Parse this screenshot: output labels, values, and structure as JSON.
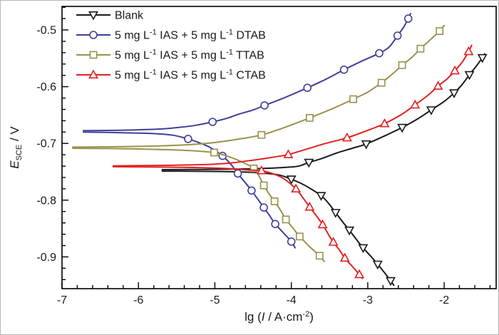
{
  "figure": {
    "background": "#ffffff",
    "frame_color": "#000000",
    "text_color": "#1a1a1a"
  },
  "axes": {
    "x": {
      "label_plain": "lg (I / A·cm-2)",
      "label_parts": [
        {
          "text": "lg ("
        },
        {
          "text": "I",
          "italic": true
        },
        {
          "text": " / A·cm"
        },
        {
          "text": "-2",
          "sup": true
        },
        {
          "text": ")"
        }
      ],
      "major_ticks": [
        -7,
        -6,
        -5,
        -4,
        -3,
        -2
      ],
      "minor_step": 0.2,
      "range": [
        -7,
        -1.32
      ]
    },
    "y": {
      "label_plain": "E_SCE / V",
      "label_parts": [
        {
          "text": "E",
          "italic": true
        },
        {
          "text": "SCE",
          "sub": true
        },
        {
          "text": " / V"
        }
      ],
      "major_ticks": [
        -0.9,
        -0.8,
        -0.7,
        -0.6,
        -0.5
      ],
      "minor_step": 0.02,
      "range": [
        -0.956,
        -0.4585
      ]
    }
  },
  "legend": {
    "position": "top-left",
    "items": [
      {
        "series_key": "blank",
        "label_parts": [
          {
            "text": "Blank"
          }
        ]
      },
      {
        "series_key": "dtab",
        "label_parts": [
          {
            "text": "5 mg L"
          },
          {
            "text": "-1",
            "sup": true
          },
          {
            "text": " IAS + 5 mg L"
          },
          {
            "text": "-1",
            "sup": true
          },
          {
            "text": " DTAB"
          }
        ]
      },
      {
        "series_key": "ttab",
        "label_parts": [
          {
            "text": "5 mg L"
          },
          {
            "text": "-1",
            "sup": true
          },
          {
            "text": " IAS + 5 mg L"
          },
          {
            "text": "-1",
            "sup": true
          },
          {
            "text": " TTAB"
          }
        ]
      },
      {
        "series_key": "ctab",
        "label_parts": [
          {
            "text": "5 mg L"
          },
          {
            "text": "-1",
            "sup": true
          },
          {
            "text": " IAS + 5 mg L"
          },
          {
            "text": "-1",
            "sup": true
          },
          {
            "text": " CTAB"
          }
        ]
      }
    ]
  },
  "chart_data": {
    "type": "line",
    "title": "",
    "xlabel": "lg (I / A·cm-2)",
    "ylabel": "E_SCE / V",
    "xlim": [
      -7,
      -1.32
    ],
    "ylim": [
      -0.956,
      -0.4585
    ],
    "grid": false,
    "legend_position": "top-left",
    "series": [
      {
        "key": "blank",
        "name": "Blank",
        "color": "#1a1a1a",
        "marker": "triangle-down",
        "ecorr_V": -0.747,
        "anodic": [
          [
            -5.69,
            -0.7462
          ],
          [
            -5.3,
            -0.746
          ],
          [
            -4.9,
            -0.7455
          ],
          [
            -4.55,
            -0.7448
          ],
          [
            -4.25,
            -0.7435
          ],
          [
            -4.0,
            -0.7415
          ],
          [
            -3.89,
            -0.7395
          ],
          [
            -3.77,
            -0.7335
          ],
          [
            -3.6,
            -0.7265
          ],
          [
            -3.4,
            -0.7165
          ],
          [
            -3.2,
            -0.7085
          ],
          [
            -3.02,
            -0.701
          ],
          [
            -2.8,
            -0.688
          ],
          [
            -2.55,
            -0.672
          ],
          [
            -2.35,
            -0.657
          ],
          [
            -2.17,
            -0.641
          ],
          [
            -2.0,
            -0.626
          ],
          [
            -1.87,
            -0.611
          ],
          [
            -1.77,
            -0.597
          ],
          [
            -1.67,
            -0.579
          ],
          [
            -1.57,
            -0.562
          ],
          [
            -1.5,
            -0.549
          ],
          [
            -1.47,
            -0.542
          ]
        ],
        "anodic_markers": [
          [
            -3.77,
            -0.7335
          ],
          [
            -3.02,
            -0.701
          ],
          [
            -2.55,
            -0.672
          ],
          [
            -2.17,
            -0.641
          ],
          [
            -1.87,
            -0.611
          ],
          [
            -1.67,
            -0.579
          ],
          [
            -1.5,
            -0.549
          ]
        ],
        "cathodic": [
          [
            -5.69,
            -0.7488
          ],
          [
            -5.3,
            -0.749
          ],
          [
            -4.9,
            -0.7495
          ],
          [
            -4.6,
            -0.7505
          ],
          [
            -4.35,
            -0.7525
          ],
          [
            -4.15,
            -0.756
          ],
          [
            -4.0,
            -0.763
          ],
          [
            -3.88,
            -0.77
          ],
          [
            -3.77,
            -0.778
          ],
          [
            -3.61,
            -0.792
          ],
          [
            -3.51,
            -0.806
          ],
          [
            -3.42,
            -0.822
          ],
          [
            -3.33,
            -0.838
          ],
          [
            -3.24,
            -0.853
          ],
          [
            -3.15,
            -0.869
          ],
          [
            -3.06,
            -0.884
          ],
          [
            -2.96,
            -0.899
          ],
          [
            -2.87,
            -0.913
          ],
          [
            -2.78,
            -0.928
          ],
          [
            -2.7,
            -0.942
          ],
          [
            -2.66,
            -0.95
          ]
        ],
        "cathodic_markers": [
          [
            -4.0,
            -0.763
          ],
          [
            -3.61,
            -0.792
          ],
          [
            -3.42,
            -0.822
          ],
          [
            -3.24,
            -0.853
          ],
          [
            -3.06,
            -0.884
          ],
          [
            -2.87,
            -0.913
          ],
          [
            -2.7,
            -0.942
          ]
        ]
      },
      {
        "key": "dtab",
        "name": "5 mg L-1 IAS + 5 mg L-1 DTAB",
        "color": "#3f3f99",
        "marker": "circle",
        "ecorr_V": -0.679,
        "anodic": [
          [
            -6.72,
            -0.6775
          ],
          [
            -6.35,
            -0.677
          ],
          [
            -6.0,
            -0.676
          ],
          [
            -5.7,
            -0.6745
          ],
          [
            -5.45,
            -0.6715
          ],
          [
            -5.25,
            -0.668
          ],
          [
            -5.03,
            -0.662
          ],
          [
            -4.85,
            -0.656
          ],
          [
            -4.7,
            -0.649
          ],
          [
            -4.5,
            -0.641
          ],
          [
            -4.35,
            -0.633
          ],
          [
            -4.1,
            -0.62
          ],
          [
            -3.79,
            -0.602
          ],
          [
            -3.55,
            -0.587
          ],
          [
            -3.31,
            -0.57
          ],
          [
            -3.08,
            -0.555
          ],
          [
            -2.85,
            -0.541
          ],
          [
            -2.72,
            -0.53
          ],
          [
            -2.61,
            -0.51
          ],
          [
            -2.53,
            -0.495
          ],
          [
            -2.47,
            -0.48
          ],
          [
            -2.44,
            -0.471
          ]
        ],
        "anodic_markers": [
          [
            -5.03,
            -0.662
          ],
          [
            -4.35,
            -0.633
          ],
          [
            -3.79,
            -0.602
          ],
          [
            -3.31,
            -0.57
          ],
          [
            -2.85,
            -0.541
          ],
          [
            -2.61,
            -0.51
          ],
          [
            -2.47,
            -0.48
          ]
        ],
        "cathodic": [
          [
            -6.72,
            -0.68
          ],
          [
            -6.35,
            -0.6808
          ],
          [
            -6.0,
            -0.6818
          ],
          [
            -5.75,
            -0.683
          ],
          [
            -5.55,
            -0.6855
          ],
          [
            -5.35,
            -0.692
          ],
          [
            -5.2,
            -0.699
          ],
          [
            -5.05,
            -0.708
          ],
          [
            -4.9,
            -0.722
          ],
          [
            -4.79,
            -0.737
          ],
          [
            -4.7,
            -0.753
          ],
          [
            -4.61,
            -0.768
          ],
          [
            -4.52,
            -0.783
          ],
          [
            -4.44,
            -0.798
          ],
          [
            -4.36,
            -0.813
          ],
          [
            -4.28,
            -0.828
          ],
          [
            -4.21,
            -0.842
          ],
          [
            -4.1,
            -0.858
          ],
          [
            -4.0,
            -0.873
          ],
          [
            -3.95,
            -0.884
          ]
        ],
        "cathodic_markers": [
          [
            -5.35,
            -0.692
          ],
          [
            -4.9,
            -0.722
          ],
          [
            -4.7,
            -0.753
          ],
          [
            -4.52,
            -0.783
          ],
          [
            -4.36,
            -0.813
          ],
          [
            -4.21,
            -0.842
          ],
          [
            -4.0,
            -0.873
          ]
        ]
      },
      {
        "key": "ttab",
        "name": "5 mg L-1 IAS + 5 mg L-1 TTAB",
        "color": "#99914d",
        "marker": "square",
        "ecorr_V": -0.708,
        "anodic": [
          [
            -6.86,
            -0.7065
          ],
          [
            -6.4,
            -0.706
          ],
          [
            -6.0,
            -0.7052
          ],
          [
            -5.6,
            -0.7038
          ],
          [
            -5.25,
            -0.7015
          ],
          [
            -4.95,
            -0.6975
          ],
          [
            -4.65,
            -0.6915
          ],
          [
            -4.39,
            -0.685
          ],
          [
            -4.1,
            -0.6725
          ],
          [
            -3.76,
            -0.655
          ],
          [
            -3.45,
            -0.638
          ],
          [
            -3.19,
            -0.622
          ],
          [
            -3.0,
            -0.6095
          ],
          [
            -2.82,
            -0.593
          ],
          [
            -2.68,
            -0.578
          ],
          [
            -2.55,
            -0.562
          ],
          [
            -2.42,
            -0.548
          ],
          [
            -2.31,
            -0.533
          ],
          [
            -2.18,
            -0.517
          ],
          [
            -2.06,
            -0.502
          ],
          [
            -2.0,
            -0.492
          ]
        ],
        "anodic_markers": [
          [
            -4.39,
            -0.685
          ],
          [
            -3.76,
            -0.655
          ],
          [
            -3.19,
            -0.622
          ],
          [
            -2.82,
            -0.593
          ],
          [
            -2.55,
            -0.562
          ],
          [
            -2.31,
            -0.533
          ],
          [
            -2.06,
            -0.502
          ]
        ],
        "cathodic": [
          [
            -6.86,
            -0.7085
          ],
          [
            -6.4,
            -0.709
          ],
          [
            -6.0,
            -0.7098
          ],
          [
            -5.6,
            -0.7112
          ],
          [
            -5.3,
            -0.7128
          ],
          [
            -5.01,
            -0.716
          ],
          [
            -4.86,
            -0.7215
          ],
          [
            -4.68,
            -0.7305
          ],
          [
            -4.49,
            -0.744
          ],
          [
            -4.42,
            -0.758
          ],
          [
            -4.36,
            -0.774
          ],
          [
            -4.29,
            -0.789
          ],
          [
            -4.22,
            -0.802
          ],
          [
            -4.14,
            -0.818
          ],
          [
            -4.07,
            -0.834
          ],
          [
            -3.98,
            -0.849
          ],
          [
            -3.89,
            -0.864
          ],
          [
            -3.76,
            -0.882
          ],
          [
            -3.63,
            -0.898
          ],
          [
            -3.57,
            -0.908
          ]
        ],
        "cathodic_markers": [
          [
            -5.01,
            -0.716
          ],
          [
            -4.49,
            -0.744
          ],
          [
            -4.36,
            -0.774
          ],
          [
            -4.22,
            -0.802
          ],
          [
            -4.07,
            -0.834
          ],
          [
            -3.89,
            -0.864
          ],
          [
            -3.63,
            -0.898
          ]
        ]
      },
      {
        "key": "ctab",
        "name": "5 mg L-1 IAS + 5 mg L-1 CTAB",
        "color": "#e32021",
        "marker": "triangle-up",
        "ecorr_V": -0.74,
        "anodic": [
          [
            -6.33,
            -0.7395
          ],
          [
            -5.9,
            -0.739
          ],
          [
            -5.5,
            -0.7383
          ],
          [
            -5.1,
            -0.737
          ],
          [
            -4.8,
            -0.7345
          ],
          [
            -4.5,
            -0.7295
          ],
          [
            -4.25,
            -0.7245
          ],
          [
            -4.04,
            -0.7195
          ],
          [
            -3.8,
            -0.71
          ],
          [
            -3.55,
            -0.7
          ],
          [
            -3.27,
            -0.69
          ],
          [
            -3.0,
            -0.677
          ],
          [
            -2.78,
            -0.665
          ],
          [
            -2.57,
            -0.65
          ],
          [
            -2.38,
            -0.632
          ],
          [
            -2.22,
            -0.616
          ],
          [
            -2.08,
            -0.599
          ],
          [
            -1.96,
            -0.586
          ],
          [
            -1.86,
            -0.572
          ],
          [
            -1.76,
            -0.556
          ],
          [
            -1.68,
            -0.538
          ],
          [
            -1.64,
            -0.527
          ]
        ],
        "anodic_markers": [
          [
            -4.04,
            -0.7195
          ],
          [
            -3.27,
            -0.69
          ],
          [
            -2.78,
            -0.665
          ],
          [
            -2.38,
            -0.632
          ],
          [
            -2.08,
            -0.599
          ],
          [
            -1.86,
            -0.572
          ],
          [
            -1.68,
            -0.538
          ]
        ],
        "cathodic": [
          [
            -6.33,
            -0.741
          ],
          [
            -5.9,
            -0.7415
          ],
          [
            -5.5,
            -0.742
          ],
          [
            -5.1,
            -0.743
          ],
          [
            -4.8,
            -0.7445
          ],
          [
            -4.57,
            -0.7468
          ],
          [
            -4.39,
            -0.748
          ],
          [
            -4.25,
            -0.753
          ],
          [
            -4.1,
            -0.762
          ],
          [
            -3.94,
            -0.78
          ],
          [
            -3.85,
            -0.7955
          ],
          [
            -3.76,
            -0.812
          ],
          [
            -3.67,
            -0.828
          ],
          [
            -3.59,
            -0.843
          ],
          [
            -3.52,
            -0.859
          ],
          [
            -3.45,
            -0.874
          ],
          [
            -3.37,
            -0.888
          ],
          [
            -3.3,
            -0.902
          ],
          [
            -3.2,
            -0.917
          ],
          [
            -3.11,
            -0.931
          ],
          [
            -3.07,
            -0.938
          ]
        ],
        "cathodic_markers": [
          [
            -4.39,
            -0.748
          ],
          [
            -3.94,
            -0.78
          ],
          [
            -3.76,
            -0.812
          ],
          [
            -3.59,
            -0.843
          ],
          [
            -3.45,
            -0.874
          ],
          [
            -3.3,
            -0.902
          ],
          [
            -3.11,
            -0.931
          ]
        ]
      }
    ]
  }
}
